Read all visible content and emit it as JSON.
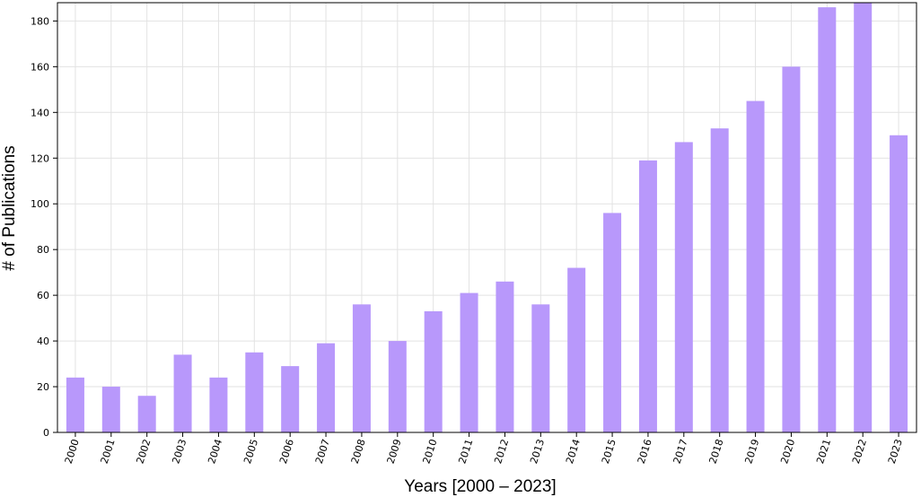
{
  "chart_data": {
    "type": "bar",
    "title": "",
    "xlabel": "Years [2000 – 2023]",
    "ylabel": "# of Publications",
    "ylim": [
      0,
      188
    ],
    "yticks": [
      0,
      20,
      40,
      60,
      80,
      100,
      120,
      140,
      160,
      180
    ],
    "grid": true,
    "legend": "none",
    "bar_color": "#b898fb",
    "categories": [
      "2000",
      "2001",
      "2002",
      "2003",
      "2004",
      "2005",
      "2006",
      "2007",
      "2008",
      "2009",
      "2010",
      "2011",
      "2012",
      "2013",
      "2014",
      "2015",
      "2016",
      "2017",
      "2018",
      "2019",
      "2020",
      "2021",
      "2022",
      "2023"
    ],
    "values": [
      24,
      20,
      16,
      34,
      24,
      35,
      29,
      39,
      56,
      40,
      53,
      61,
      66,
      56,
      72,
      96,
      119,
      127,
      133,
      145,
      160,
      186,
      188,
      130
    ]
  }
}
